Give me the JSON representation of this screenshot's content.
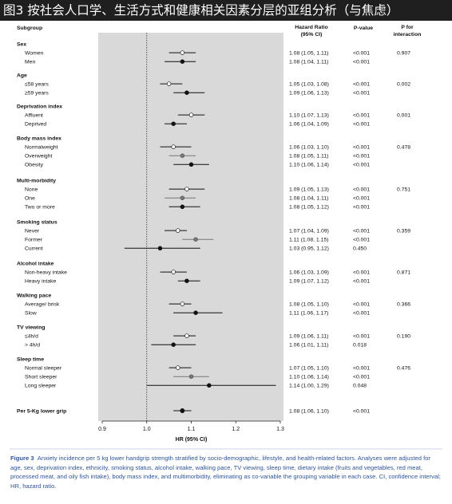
{
  "banner": {
    "title": "图3 按社会人口学、生活方式和健康相关因素分层的亚组分析（与焦虑）"
  },
  "caption": {
    "label": "Figure 3",
    "text": "Anxiety incidence per 5 kg lower handgrip strength stratified by socio-demographic, lifestyle, and health-related factors. Analyses were adjusted for age, sex, deprivation index, ethnicity, smoking status, alcohol intake, walking pace, TV viewing, sleep time, dietary intake (fruits and vegetables, red meat, processed meat, and oily fish intake), body mass index, and multimorbidity, eliminating as co-variable the grouping variable in each case. CI, confidence interval; HR, hazard ratio."
  },
  "chart_data": {
    "type": "forest",
    "headers": {
      "subgroup": "Subgroup",
      "hr": "Hazard Ratio (95% CI)",
      "pvalue": "P-value",
      "pint": "P for interaction"
    },
    "xlabel": "HR (95% CI)",
    "xlim": [
      0.9,
      1.3
    ],
    "xticks": [
      "0.9",
      "1.0",
      "1.1",
      "1.2",
      "1.3"
    ],
    "reference_line": 1.0,
    "groups": [
      {
        "name": "Sex",
        "rows": [
          {
            "label": "Women",
            "hr": 1.08,
            "lo": 1.05,
            "hi": 1.11,
            "hr_text": "1.08 (1.05, 1.11)",
            "p": "<0.001",
            "pint": "0.907",
            "marker": "open"
          },
          {
            "label": "Men",
            "hr": 1.08,
            "lo": 1.04,
            "hi": 1.11,
            "hr_text": "1.08 (1.04, 1.11)",
            "p": "<0.001",
            "pint": "",
            "marker": "filled"
          }
        ]
      },
      {
        "name": "Age",
        "rows": [
          {
            "label": "≤58 years",
            "hr": 1.05,
            "lo": 1.03,
            "hi": 1.08,
            "hr_text": "1.05 (1.03, 1.08)",
            "p": "<0.001",
            "pint": "0.002",
            "marker": "open"
          },
          {
            "label": "≥59 years",
            "hr": 1.09,
            "lo": 1.06,
            "hi": 1.13,
            "hr_text": "1.09 (1.06, 1.13)",
            "p": "<0.001",
            "pint": "",
            "marker": "filled"
          }
        ]
      },
      {
        "name": "Deprivation index",
        "rows": [
          {
            "label": "Affluent",
            "hr": 1.1,
            "lo": 1.07,
            "hi": 1.13,
            "hr_text": "1.10 (1.07, 1.13)",
            "p": "<0.001",
            "pint": "0.001",
            "marker": "open"
          },
          {
            "label": "Deprived",
            "hr": 1.06,
            "lo": 1.04,
            "hi": 1.09,
            "hr_text": "1.06 (1.04, 1.09)",
            "p": "<0.001",
            "pint": "",
            "marker": "filled"
          }
        ]
      },
      {
        "name": "Body mass index",
        "rows": [
          {
            "label": "Normalweight",
            "hr": 1.06,
            "lo": 1.03,
            "hi": 1.1,
            "hr_text": "1.06 (1.03, 1.10)",
            "p": "<0.001",
            "pint": "0.478",
            "marker": "open"
          },
          {
            "label": "Overweight",
            "hr": 1.08,
            "lo": 1.05,
            "hi": 1.11,
            "hr_text": "1.08 (1.05, 1.11)",
            "p": "<0.001",
            "pint": "",
            "marker": "gray"
          },
          {
            "label": "Obesity",
            "hr": 1.1,
            "lo": 1.06,
            "hi": 1.14,
            "hr_text": "1.10 (1.06, 1.14)",
            "p": "<0.001",
            "pint": "",
            "marker": "filled"
          }
        ]
      },
      {
        "name": "Multi-morbidity",
        "rows": [
          {
            "label": "None",
            "hr": 1.09,
            "lo": 1.05,
            "hi": 1.13,
            "hr_text": "1.09 (1.05, 1.13)",
            "p": "<0.001",
            "pint": "0.751",
            "marker": "open"
          },
          {
            "label": "One",
            "hr": 1.08,
            "lo": 1.04,
            "hi": 1.11,
            "hr_text": "1.08 (1.04, 1.11)",
            "p": "<0.001",
            "pint": "",
            "marker": "gray"
          },
          {
            "label": "Two or more",
            "hr": 1.08,
            "lo": 1.05,
            "hi": 1.12,
            "hr_text": "1.08 (1.05, 1.12)",
            "p": "<0.001",
            "pint": "",
            "marker": "filled"
          }
        ]
      },
      {
        "name": "Smoking status",
        "rows": [
          {
            "label": "Never",
            "hr": 1.07,
            "lo": 1.04,
            "hi": 1.09,
            "hr_text": "1.07 (1.04, 1.09)",
            "p": "<0.001",
            "pint": "0.359",
            "marker": "open"
          },
          {
            "label": "Former",
            "hr": 1.11,
            "lo": 1.08,
            "hi": 1.15,
            "hr_text": "1.11 (1.08, 1.15)",
            "p": "<0.001",
            "pint": "",
            "marker": "gray"
          },
          {
            "label": "Current",
            "hr": 1.03,
            "lo": 0.95,
            "hi": 1.12,
            "hr_text": "1.03 (0.95, 1.12)",
            "p": "0.450",
            "pint": "",
            "marker": "filled"
          }
        ]
      },
      {
        "name": "Alcohol intake",
        "rows": [
          {
            "label": "Non-heavy intake",
            "hr": 1.06,
            "lo": 1.03,
            "hi": 1.09,
            "hr_text": "1.06 (1.03, 1.09)",
            "p": "<0.001",
            "pint": "0.871",
            "marker": "open"
          },
          {
            "label": "Heavy intake",
            "hr": 1.09,
            "lo": 1.07,
            "hi": 1.12,
            "hr_text": "1.09 (1.07, 1.12)",
            "p": "<0.001",
            "pint": "",
            "marker": "filled"
          }
        ]
      },
      {
        "name": "Walking pace",
        "rows": [
          {
            "label": "Average/ brisk",
            "hr": 1.08,
            "lo": 1.05,
            "hi": 1.1,
            "hr_text": "1.08 (1.05, 1.10)",
            "p": "<0.001",
            "pint": "0.366",
            "marker": "open"
          },
          {
            "label": "Slow",
            "hr": 1.11,
            "lo": 1.06,
            "hi": 1.17,
            "hr_text": "1.11 (1.06, 1.17)",
            "p": "<0.001",
            "pint": "",
            "marker": "filled"
          }
        ]
      },
      {
        "name": "TV viewing",
        "rows": [
          {
            "label": "≤4h/d",
            "hr": 1.09,
            "lo": 1.06,
            "hi": 1.11,
            "hr_text": "1.09 (1.06, 1.11)",
            "p": "<0.001",
            "pint": "0.190",
            "marker": "open"
          },
          {
            "label": "> 4h/d",
            "hr": 1.06,
            "lo": 1.01,
            "hi": 1.11,
            "hr_text": "1.06 (1.01, 1.11)",
            "p": "0.018",
            "pint": "",
            "marker": "filled"
          }
        ]
      },
      {
        "name": "Sleep time",
        "rows": [
          {
            "label": "Normal sleeper",
            "hr": 1.07,
            "lo": 1.05,
            "hi": 1.1,
            "hr_text": "1.07 (1.05, 1.10)",
            "p": "<0.001",
            "pint": "0.476",
            "marker": "open"
          },
          {
            "label": "Short sleeper",
            "hr": 1.1,
            "lo": 1.06,
            "hi": 1.14,
            "hr_text": "1.10 (1.06, 1.14)",
            "p": "<0.001",
            "pint": "",
            "marker": "gray"
          },
          {
            "label": "Long sleeper",
            "hr": 1.14,
            "lo": 1.0,
            "hi": 1.29,
            "hr_text": "1.14 (1.00, 1.29)",
            "p": "0.048",
            "pint": "",
            "marker": "filled"
          }
        ]
      }
    ],
    "overall": {
      "label": "Per 5-Kg lower grip",
      "hr": 1.08,
      "lo": 1.06,
      "hi": 1.1,
      "hr_text": "1.08 (1.06, 1.10)",
      "p": "<0.001",
      "pint": "",
      "marker": "filled"
    }
  }
}
